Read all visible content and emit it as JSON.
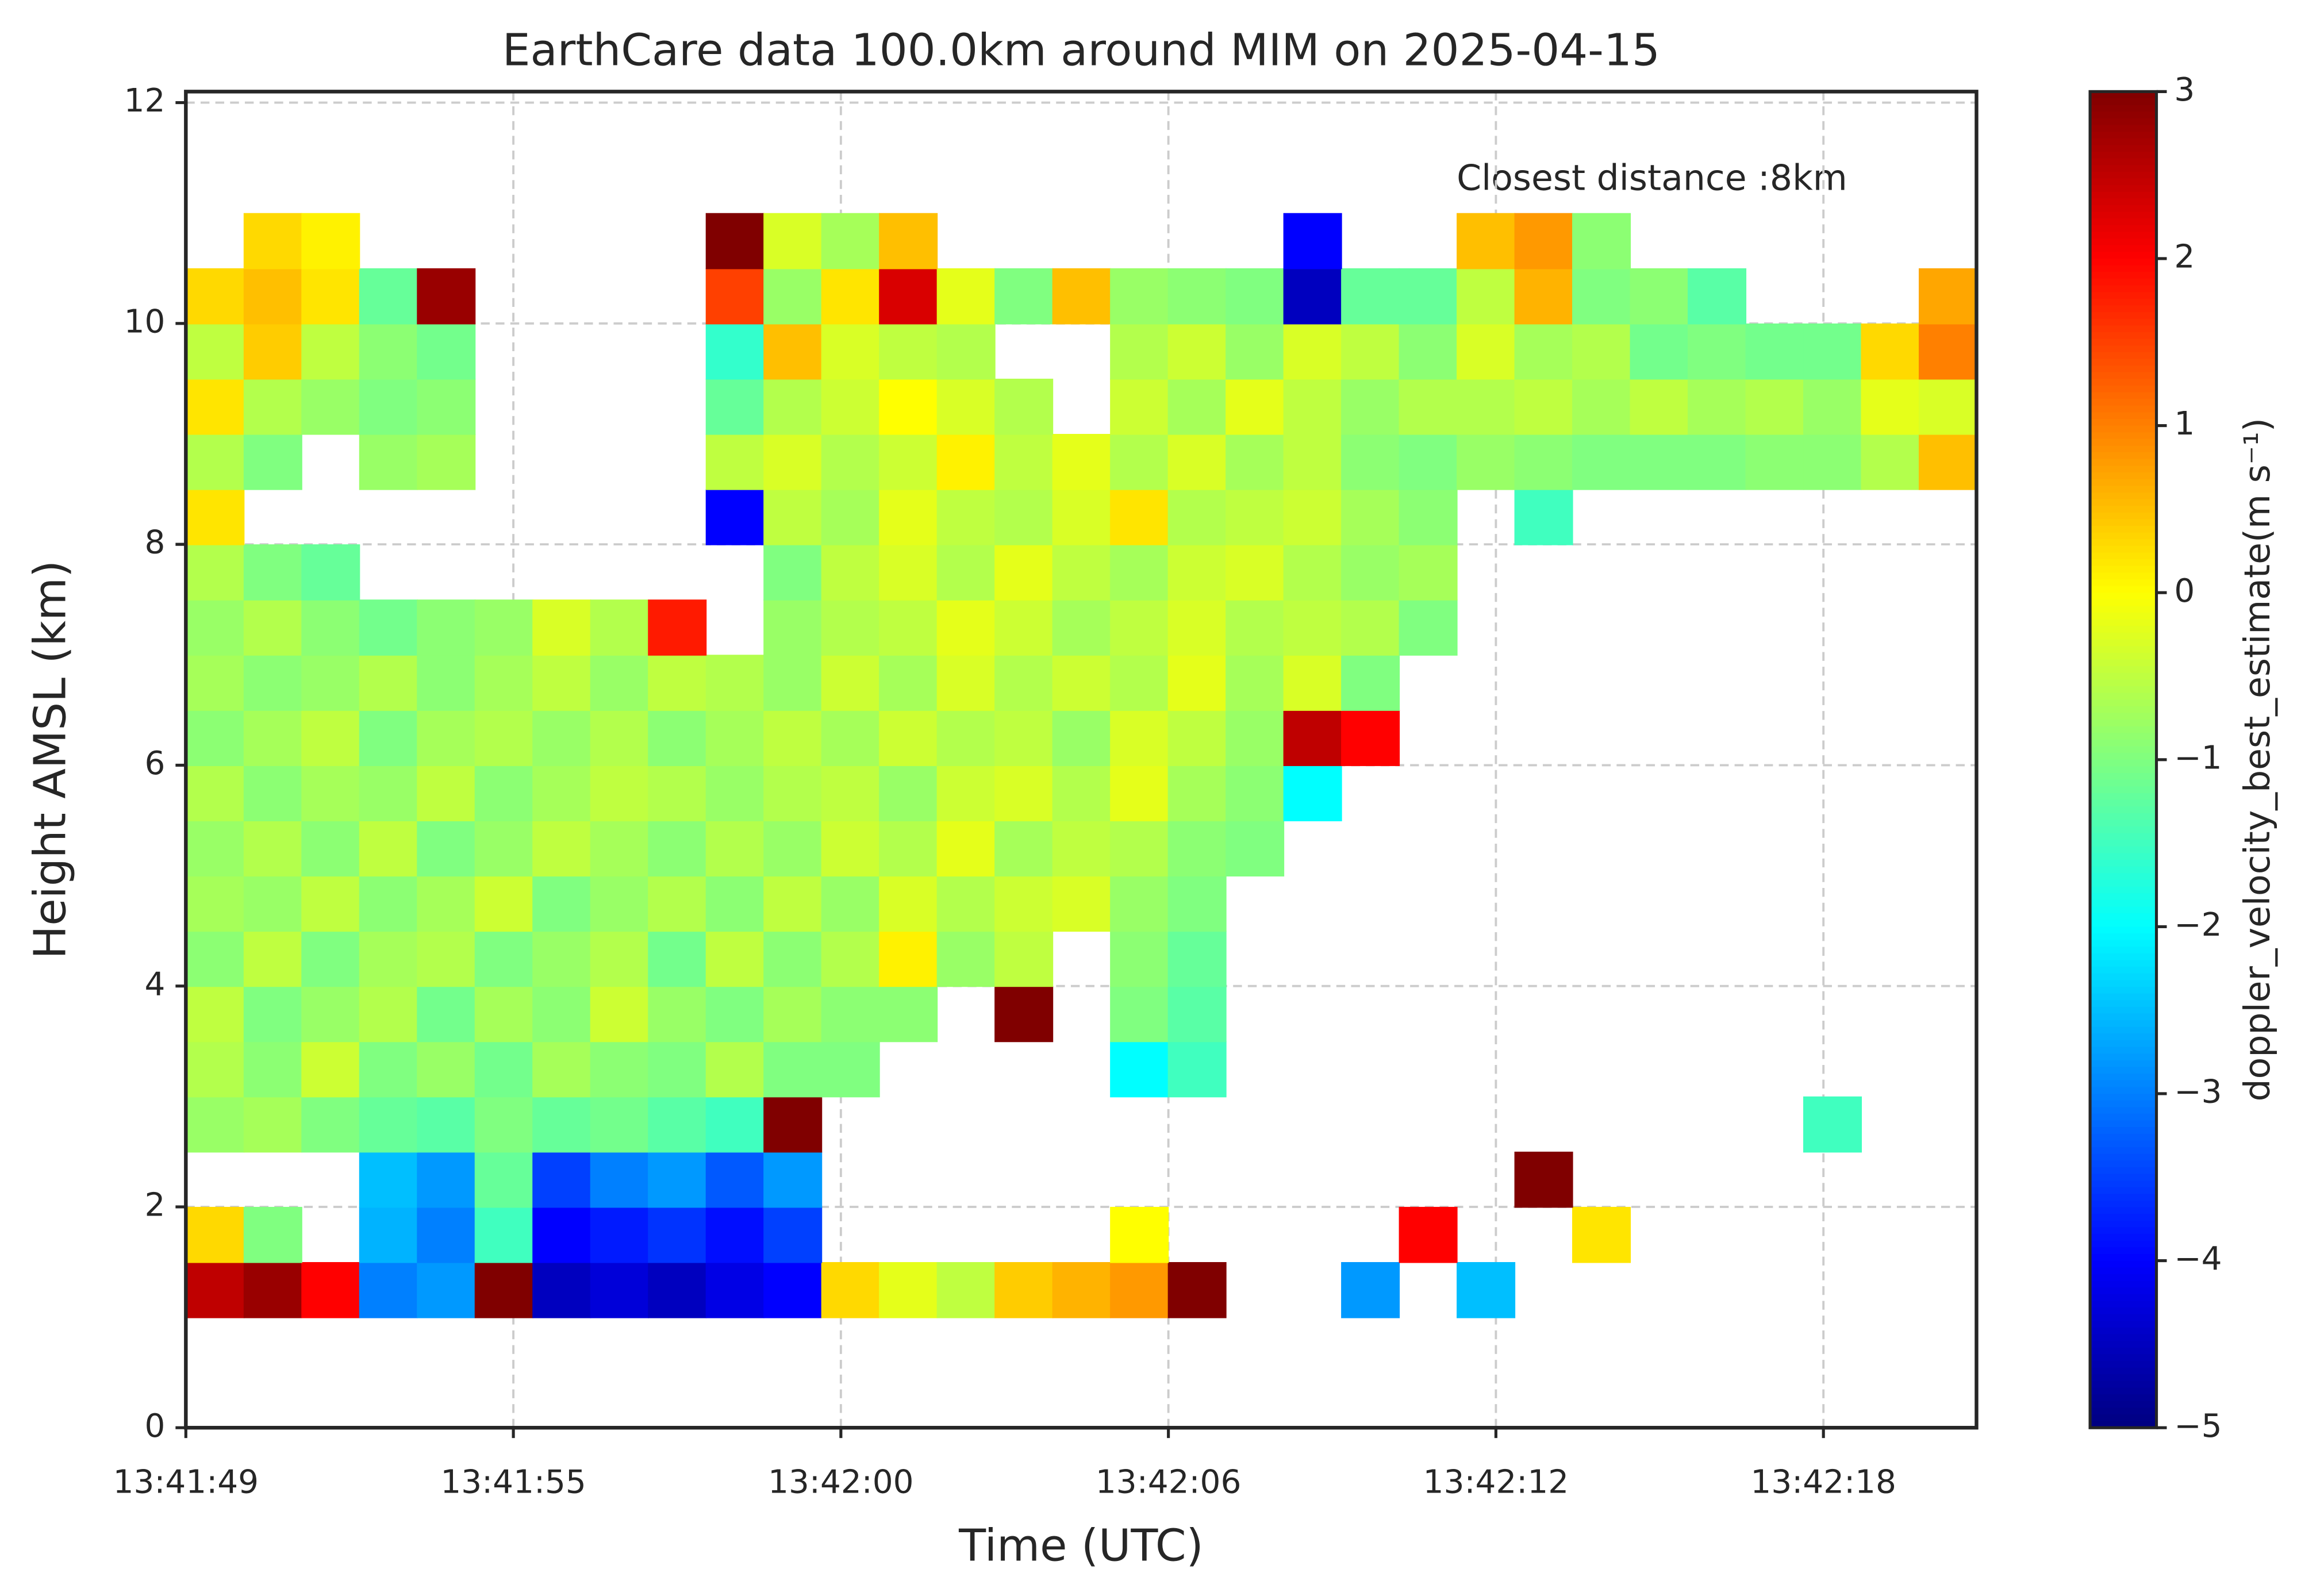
{
  "chart_data": {
    "type": "heatmap",
    "title": "EarthCare data 100.0km around MIM on 2025-04-15",
    "x_label": "Time (UTC)",
    "y_label": "Height AMSL (km)",
    "annotation": "Closest distance :8km",
    "colorbar_label": "doppler_velocity_best_estimate(m s⁻¹)",
    "colormap": "jet",
    "grid": true,
    "xlim": [
      0,
      31
    ],
    "xticks": [
      {
        "value": 0,
        "label": "13:41:49"
      },
      {
        "value": 5.67,
        "label": "13:41:55"
      },
      {
        "value": 11.34,
        "label": "13:42:00"
      },
      {
        "value": 17.01,
        "label": "13:42:06"
      },
      {
        "value": 22.68,
        "label": "13:42:12"
      },
      {
        "value": 28.35,
        "label": "13:42:18"
      }
    ],
    "ylim": [
      0,
      12.1
    ],
    "yticks": [
      0,
      2,
      4,
      6,
      8,
      10,
      12
    ],
    "zlim": [
      -5,
      3
    ],
    "zticks": [
      {
        "value": -5,
        "label": "−5"
      },
      {
        "value": -4,
        "label": "−4"
      },
      {
        "value": -3,
        "label": "−3"
      },
      {
        "value": -2,
        "label": "−2"
      },
      {
        "value": -1,
        "label": "−1"
      },
      0,
      1,
      2,
      3
    ],
    "x": [
      0.5,
      1.5,
      2.5,
      3.5,
      4.5,
      5.5,
      6.5,
      7.5,
      8.5,
      9.5,
      10.5,
      11.5,
      12.5,
      13.5,
      14.5,
      15.5,
      16.5,
      17.5,
      18.5,
      19.5,
      20.5,
      21.5,
      22.5,
      23.5,
      24.5,
      25.5,
      26.5,
      27.5,
      28.5,
      29.5,
      30.5
    ],
    "y": [
      1.25,
      1.75,
      2.25,
      2.75,
      3.25,
      3.75,
      4.25,
      4.75,
      5.25,
      5.75,
      6.25,
      6.75,
      7.25,
      7.75,
      8.25,
      8.75,
      9.25,
      9.75,
      10.25,
      10.75
    ],
    "z": [
      [
        2.5,
        2.8,
        2.0,
        -3.0,
        -2.8,
        3.0,
        -4.5,
        -4.3,
        -4.5,
        -4.2,
        -4.0,
        0.3,
        -0.2,
        -0.5,
        0.4,
        0.6,
        0.8,
        3.0,
        null,
        null,
        -2.8,
        null,
        -2.5,
        null,
        null,
        null,
        null,
        null,
        null,
        null,
        null
      ],
      [
        0.3,
        -1.0,
        null,
        -2.6,
        -3.0,
        -1.5,
        -4.0,
        -3.8,
        -3.6,
        -3.9,
        -3.5,
        null,
        null,
        null,
        null,
        null,
        0.0,
        null,
        null,
        null,
        null,
        2.0,
        null,
        null,
        0.2,
        null,
        null,
        null,
        null,
        null,
        null
      ],
      [
        null,
        null,
        null,
        -2.5,
        -2.8,
        -1.2,
        -3.5,
        -3.0,
        -2.8,
        -3.3,
        -2.8,
        null,
        null,
        null,
        null,
        null,
        null,
        null,
        null,
        null,
        null,
        null,
        null,
        3.0,
        null,
        null,
        null,
        null,
        null,
        null,
        null
      ],
      [
        -0.8,
        -0.7,
        -1.0,
        -1.2,
        -1.3,
        -1.0,
        -1.2,
        -1.1,
        -1.3,
        -1.5,
        3.0,
        null,
        null,
        null,
        null,
        null,
        null,
        null,
        null,
        null,
        null,
        null,
        null,
        null,
        null,
        null,
        null,
        null,
        -1.5,
        null,
        null
      ],
      [
        -0.6,
        -0.9,
        -0.4,
        -1.0,
        -0.8,
        -1.1,
        -0.7,
        -0.9,
        -1.0,
        -0.6,
        -1.0,
        -1.0,
        null,
        null,
        null,
        null,
        -2.0,
        -1.5,
        null,
        null,
        null,
        null,
        null,
        null,
        null,
        null,
        null,
        null,
        null,
        null,
        null
      ],
      [
        -0.5,
        -1.0,
        -0.8,
        -0.6,
        -1.1,
        -0.7,
        -0.9,
        -0.4,
        -0.8,
        -1.0,
        -0.7,
        -0.9,
        -0.9,
        null,
        3.0,
        null,
        -1.0,
        -1.3,
        null,
        null,
        null,
        null,
        null,
        null,
        null,
        null,
        null,
        null,
        null,
        null,
        null
      ],
      [
        -0.9,
        -0.5,
        -1.0,
        -0.7,
        -0.6,
        -1.0,
        -0.8,
        -0.6,
        -1.1,
        -0.5,
        -0.9,
        -0.6,
        0.1,
        -0.8,
        -0.5,
        null,
        -0.9,
        -1.2,
        null,
        null,
        null,
        null,
        null,
        null,
        null,
        null,
        null,
        null,
        null,
        null,
        null
      ],
      [
        -0.7,
        -0.8,
        -0.5,
        -0.9,
        -0.7,
        -0.4,
        -1.0,
        -0.8,
        -0.6,
        -0.9,
        -0.5,
        -0.8,
        -0.3,
        -0.6,
        -0.4,
        -0.3,
        -0.8,
        -1.0,
        null,
        null,
        null,
        null,
        null,
        null,
        null,
        null,
        null,
        null,
        null,
        null,
        null
      ],
      [
        -0.8,
        -0.6,
        -0.9,
        -0.5,
        -1.0,
        -0.8,
        -0.5,
        -0.7,
        -0.9,
        -0.6,
        -0.8,
        -0.4,
        -0.6,
        -0.2,
        -0.7,
        -0.5,
        -0.6,
        -0.9,
        -1.0,
        null,
        null,
        null,
        null,
        null,
        null,
        null,
        null,
        null,
        null,
        null,
        null
      ],
      [
        -0.6,
        -0.9,
        -0.7,
        -0.8,
        -0.5,
        -0.9,
        -0.7,
        -0.5,
        -0.6,
        -0.8,
        -0.6,
        -0.5,
        -0.8,
        -0.4,
        -0.3,
        -0.6,
        -0.2,
        -0.7,
        -0.9,
        -2.0,
        null,
        null,
        null,
        null,
        null,
        null,
        null,
        null,
        null,
        null,
        null
      ],
      [
        -0.9,
        -0.7,
        -0.5,
        -1.0,
        -0.7,
        -0.6,
        -0.8,
        -0.6,
        -0.9,
        -0.7,
        -0.5,
        -0.7,
        -0.4,
        -0.6,
        -0.5,
        -0.8,
        -0.3,
        -0.5,
        -0.8,
        2.5,
        2.0,
        null,
        null,
        null,
        null,
        null,
        null,
        null,
        null,
        null,
        null
      ],
      [
        -0.7,
        -0.9,
        -0.8,
        -0.6,
        -0.9,
        -0.7,
        -0.5,
        -0.8,
        -0.5,
        -0.6,
        -0.8,
        -0.4,
        -0.7,
        -0.3,
        -0.6,
        -0.4,
        -0.6,
        -0.2,
        -0.7,
        -0.3,
        -1.0,
        null,
        null,
        null,
        null,
        null,
        null,
        null,
        null,
        null,
        null
      ],
      [
        -0.8,
        -0.6,
        -0.9,
        -1.1,
        -0.9,
        -0.8,
        -0.3,
        -0.6,
        1.8,
        null,
        -0.8,
        -0.6,
        -0.5,
        -0.2,
        -0.4,
        -0.7,
        -0.5,
        -0.3,
        -0.6,
        -0.5,
        -0.6,
        -1.0,
        null,
        null,
        null,
        null,
        null,
        null,
        null,
        null,
        null
      ],
      [
        -0.6,
        -1.0,
        -1.2,
        null,
        null,
        null,
        null,
        null,
        null,
        null,
        -1.0,
        -0.5,
        -0.3,
        -0.6,
        -0.2,
        -0.5,
        -0.7,
        -0.4,
        -0.3,
        -0.6,
        -0.8,
        -0.7,
        null,
        null,
        null,
        null,
        null,
        null,
        null,
        null,
        null
      ],
      [
        0.2,
        null,
        null,
        null,
        null,
        null,
        null,
        null,
        null,
        -4.0,
        -0.5,
        -0.7,
        -0.2,
        -0.5,
        -0.6,
        -0.3,
        0.2,
        -0.6,
        -0.5,
        -0.4,
        -0.7,
        -0.9,
        null,
        -1.5,
        null,
        null,
        null,
        null,
        null,
        null,
        null
      ],
      [
        -0.6,
        -1.0,
        null,
        -0.8,
        -0.7,
        null,
        null,
        null,
        null,
        -0.5,
        -0.3,
        -0.6,
        -0.4,
        0.1,
        -0.5,
        -0.2,
        -0.6,
        -0.3,
        -0.7,
        -0.5,
        -0.9,
        -1.0,
        -0.8,
        -0.9,
        -1.0,
        -1.0,
        -1.0,
        -0.9,
        -0.9,
        -0.6,
        0.5
      ],
      [
        0.2,
        -0.6,
        -0.8,
        -1.0,
        -0.9,
        null,
        null,
        null,
        null,
        -1.2,
        -0.6,
        -0.4,
        0.0,
        -0.3,
        -0.6,
        null,
        -0.4,
        -0.7,
        -0.2,
        -0.5,
        -0.8,
        -0.6,
        -0.6,
        -0.5,
        -0.7,
        -0.5,
        -0.7,
        -0.6,
        -0.8,
        -0.2,
        -0.3
      ],
      [
        -0.5,
        0.4,
        -0.5,
        -0.9,
        -1.1,
        null,
        null,
        null,
        null,
        -1.6,
        0.5,
        -0.3,
        -0.5,
        -0.6,
        null,
        null,
        -0.6,
        -0.4,
        -0.8,
        -0.3,
        -0.5,
        -0.9,
        -0.3,
        -0.7,
        -0.6,
        -1.1,
        -1.0,
        -1.1,
        -1.1,
        0.3,
        1.0
      ],
      [
        0.3,
        0.5,
        0.2,
        -1.2,
        2.8,
        null,
        null,
        null,
        null,
        1.5,
        -0.8,
        0.2,
        2.3,
        -0.2,
        -1.0,
        0.5,
        -0.8,
        -0.9,
        -1.0,
        -4.5,
        -1.2,
        -1.2,
        -0.5,
        0.6,
        -1.0,
        -0.9,
        -1.3,
        null,
        null,
        null,
        0.7
      ],
      [
        null,
        0.3,
        0.1,
        null,
        null,
        null,
        null,
        null,
        null,
        3.0,
        -0.3,
        -0.7,
        0.5,
        null,
        null,
        null,
        null,
        null,
        null,
        -4.0,
        null,
        null,
        0.5,
        0.8,
        -0.9,
        null,
        null,
        null,
        null,
        null,
        null
      ]
    ]
  }
}
